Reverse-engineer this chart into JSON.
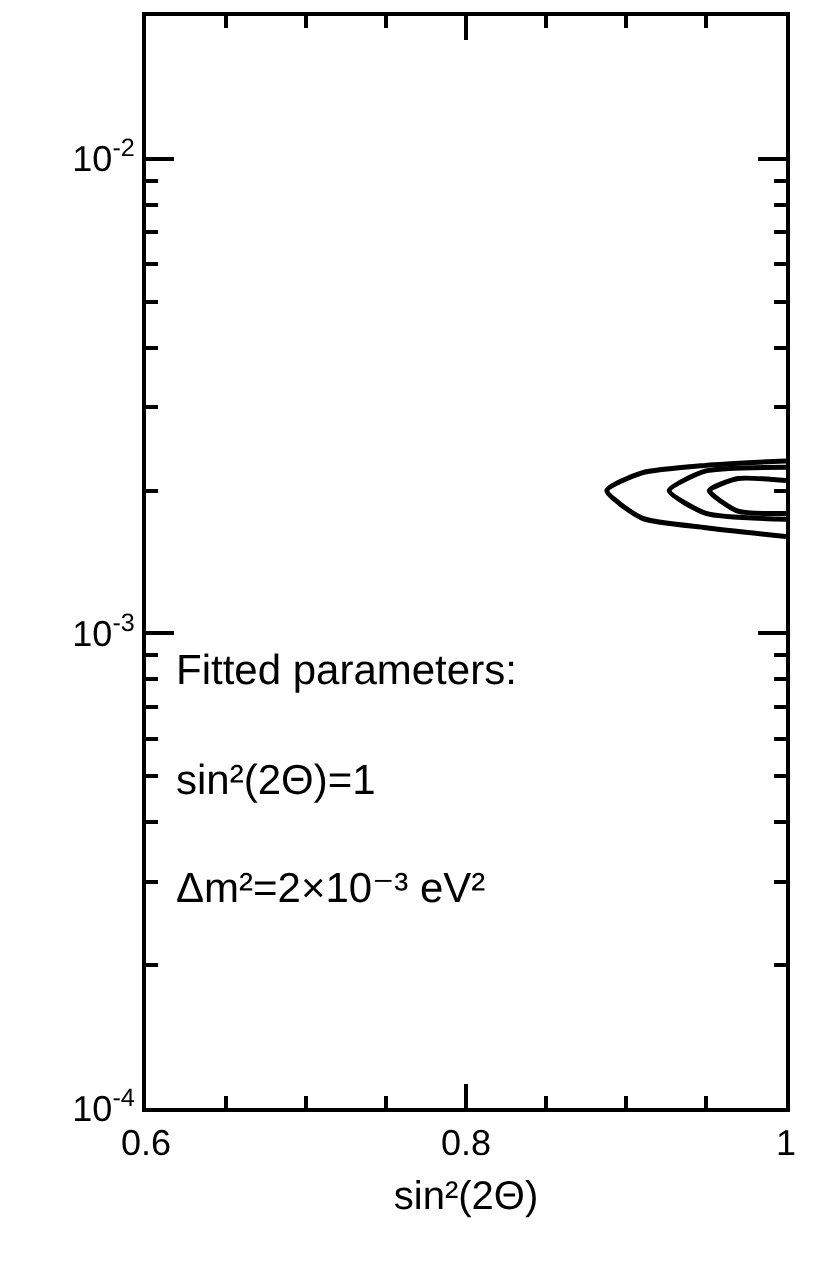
{
  "chart_data": {
    "type": "line",
    "xlabel": "sin²(2Θ)",
    "annotations": [
      "Fitted parameters:",
      "sin²(2Θ)=1",
      "Δm²=2×10⁻³ eV²"
    ],
    "series": [
      {
        "color": "#000000",
        "x": [
          1.0,
          0.95,
          0.91,
          0.888,
          0.91,
          0.95,
          1.0
        ],
        "values": [
          0.00231,
          0.00226,
          0.00218,
          0.002,
          0.00175,
          0.00167,
          0.0016
        ]
      },
      {
        "color": "#000000",
        "x": [
          1.0,
          0.95,
          0.927,
          0.95,
          1.0
        ],
        "values": [
          0.00224,
          0.0022,
          0.002,
          0.00179,
          0.00174
        ]
      },
      {
        "color": "#000000",
        "x": [
          1.0,
          0.97,
          0.952,
          0.97,
          1.0
        ],
        "values": [
          0.0021,
          0.00212,
          0.002,
          0.00181,
          0.00179
        ]
      }
    ],
    "xlim": [
      0.6,
      1.0
    ],
    "xticks": [
      0.6,
      {
        "value": 0.65,
        "label": null
      },
      {
        "value": 0.7,
        "label": null
      },
      {
        "value": 0.75,
        "label": null
      },
      0.8,
      {
        "value": 0.85,
        "label": null
      },
      {
        "value": 0.9,
        "label": null
      },
      {
        "value": 0.95,
        "label": null
      },
      1
    ],
    "ylim": [
      0.0001,
      0.02
    ],
    "log": true,
    "yticks": [
      {
        "value": 0.0001,
        "label": "10$^{-4}$"
      },
      {
        "value": 0.0002,
        "label": null
      },
      {
        "value": 0.0003,
        "label": null
      },
      {
        "value": 0.0004,
        "label": null
      },
      {
        "value": 0.0005,
        "label": null
      },
      {
        "value": 0.0006,
        "label": null
      },
      {
        "value": 0.0007,
        "label": null
      },
      {
        "value": 0.0008,
        "label": null
      },
      {
        "value": 0.0009,
        "label": null
      },
      {
        "value": 0.001,
        "label": "10$^{-3}$"
      },
      {
        "value": 0.002,
        "label": null
      },
      {
        "value": 0.003,
        "label": null
      },
      {
        "value": 0.004,
        "label": null
      },
      {
        "value": 0.005,
        "label": null
      },
      {
        "value": 0.006,
        "label": null
      },
      {
        "value": 0.007,
        "label": null
      },
      {
        "value": 0.008,
        "label": null
      },
      {
        "value": 0.009,
        "label": null
      },
      {
        "value": 0.01,
        "label": "10$^{-2}$"
      },
      {
        "value": 0.02,
        "label": null
      }
    ],
    "line_style": "solid",
    "marker": "none"
  }
}
